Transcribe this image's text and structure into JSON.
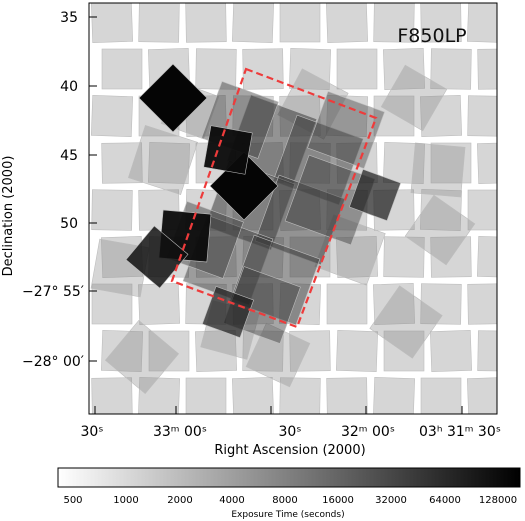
{
  "filter_label": "F850LP",
  "axes": {
    "y_title": "Declination (2000)",
    "x_title": "Right Ascension (2000)",
    "y_ticks": [
      {
        "label": "35"
      },
      {
        "label": "40"
      },
      {
        "label": "45"
      },
      {
        "label": "50"
      },
      {
        "label": "−27° 55′"
      },
      {
        "label": "−28° 00′"
      }
    ],
    "x_ticks": [
      {
        "label": "30ˢ"
      },
      {
        "label": "33ᵐ 00ˢ"
      },
      {
        "label": "30ˢ"
      },
      {
        "label": "32ᵐ 00ˢ"
      },
      {
        "label": "03ʰ 31ᵐ 30ˢ"
      }
    ]
  },
  "colorbar": {
    "ticks": [
      "500",
      "1000",
      "2000",
      "4000",
      "8000",
      "16000",
      "32000",
      "64000",
      "128000"
    ],
    "title": "Exposure Time (seconds)",
    "gradient": [
      "#ffffff",
      "#000000"
    ]
  },
  "colors": {
    "survey_outline": "#ee3b3b",
    "frame": "#000000",
    "tile_light": "#d6d6d6",
    "tile_dark": "#000000"
  }
}
